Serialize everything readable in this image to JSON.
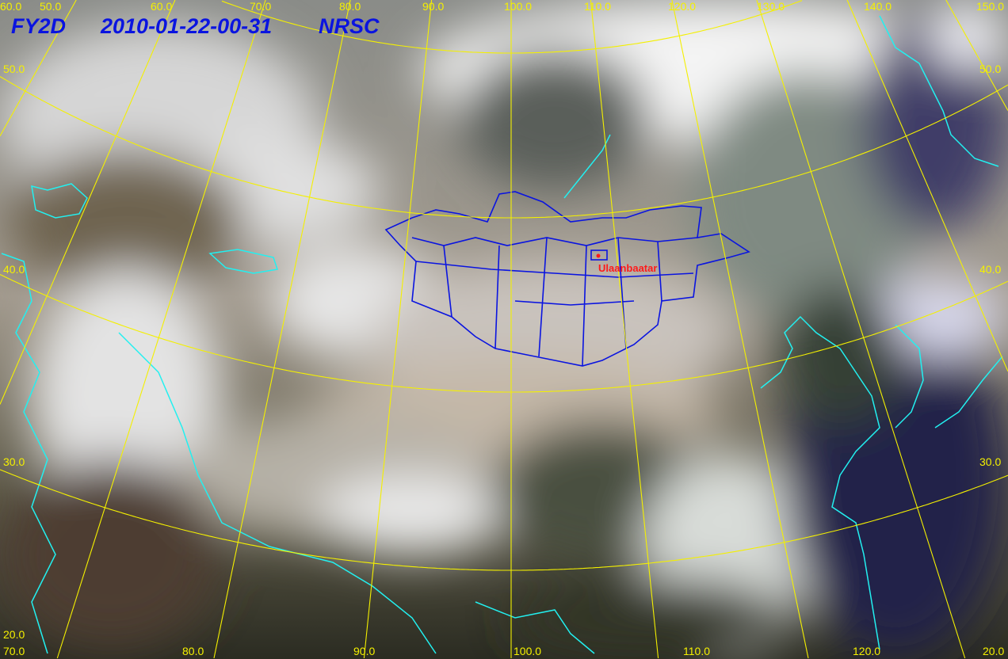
{
  "header": {
    "satellite": "FY2D",
    "timestamp": "2010-01-22-00-31",
    "agency": "NRSC"
  },
  "city": {
    "name": "Ulaanbaatar",
    "color": "#ff1a1a"
  },
  "graticule": {
    "color": "#f4f000",
    "top_longitude_labels": [
      "50.0",
      "60.0",
      "70.0",
      "80.0",
      "90.0",
      "100.0",
      "110.0",
      "120.0",
      "130.0",
      "140.0",
      "150.0"
    ],
    "bottom_longitude_labels": [
      "70.0",
      "80.0",
      "90.0",
      "100.0",
      "110.0",
      "120.0"
    ],
    "left_latitude_labels": [
      "60.0",
      "50.0",
      "40.0",
      "30.0",
      "20.0"
    ],
    "right_latitude_labels": [
      "50.0",
      "40.0",
      "30.0",
      "20.0"
    ]
  },
  "colors": {
    "coastline": "#22f0f0",
    "mongolia_border": "#0a14e0",
    "title": "#0a14e0"
  }
}
